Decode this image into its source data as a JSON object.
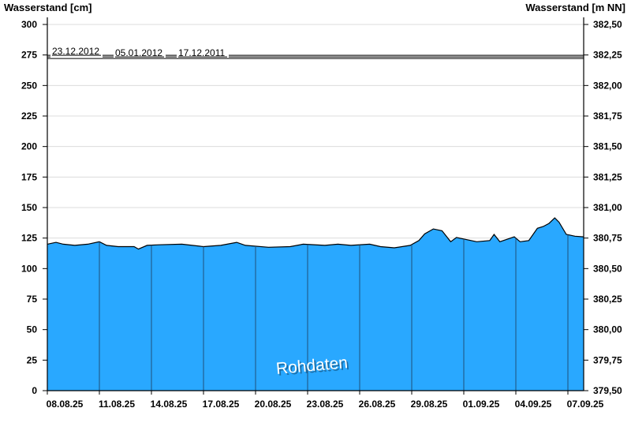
{
  "chart_data": {
    "type": "area",
    "ylabel_left": "Wasserstand [cm]",
    "ylabel_right": "Wasserstand [m NN]",
    "watermark": "Rohdaten",
    "ylim": [
      0,
      300
    ],
    "ylim_right": [
      379.5,
      382.5
    ],
    "grid": true,
    "fill_color": "#29a8ff",
    "yticks_left": [
      "0",
      "25",
      "50",
      "75",
      "100",
      "125",
      "150",
      "175",
      "200",
      "225",
      "250",
      "275",
      "300"
    ],
    "yticks_right": [
      "379,50",
      "379,75",
      "380,00",
      "380,25",
      "380,50",
      "380,75",
      "381,00",
      "381,25",
      "381,50",
      "381,75",
      "382,00",
      "382,25",
      "382,50"
    ],
    "xticks": [
      "08.08.25",
      "11.08.25",
      "14.08.25",
      "17.08.25",
      "20.08.25",
      "23.08.25",
      "26.08.25",
      "29.08.25",
      "01.09.25",
      "04.09.25",
      "07.09.25"
    ],
    "xlim": [
      "2025-08-08T00:00",
      "2025-09-07T22:00"
    ],
    "reference_lines": [
      {
        "label": "23.12.2012",
        "value": 274.7
      },
      {
        "label": "05.01.2012",
        "value": 273.4
      },
      {
        "label": "17.12.2011",
        "value": 272.1
      }
    ],
    "series": [
      {
        "points": [
          [
            "2025-08-08T00:00",
            120
          ],
          [
            "2025-08-08T12:00",
            121.5
          ],
          [
            "2025-08-08T22:00",
            120
          ],
          [
            "2025-08-09T14:00",
            119
          ],
          [
            "2025-08-10T08:00",
            120
          ],
          [
            "2025-08-11T00:00",
            122
          ],
          [
            "2025-08-11T10:00",
            119
          ],
          [
            "2025-08-12T02:00",
            118
          ],
          [
            "2025-08-13T00:00",
            118
          ],
          [
            "2025-08-13T06:00",
            116
          ],
          [
            "2025-08-13T18:00",
            119
          ],
          [
            "2025-08-14T10:00",
            119.5
          ],
          [
            "2025-08-15T18:00",
            120
          ],
          [
            "2025-08-17T00:00",
            118
          ],
          [
            "2025-08-18T00:00",
            119
          ],
          [
            "2025-08-18T22:00",
            121.5
          ],
          [
            "2025-08-19T10:00",
            119
          ],
          [
            "2025-08-20T18:00",
            117.5
          ],
          [
            "2025-08-22T00:00",
            118
          ],
          [
            "2025-08-22T18:00",
            120
          ],
          [
            "2025-08-24T00:00",
            119
          ],
          [
            "2025-08-24T18:00",
            120
          ],
          [
            "2025-08-25T12:00",
            119
          ],
          [
            "2025-08-26T14:00",
            120
          ],
          [
            "2025-08-27T05:00",
            118
          ],
          [
            "2025-08-28T00:00",
            117
          ],
          [
            "2025-08-28T22:00",
            119
          ],
          [
            "2025-08-29T10:00",
            123
          ],
          [
            "2025-08-29T18:00",
            128.5
          ],
          [
            "2025-08-30T06:00",
            132.5
          ],
          [
            "2025-08-30T18:00",
            131
          ],
          [
            "2025-08-31T06:00",
            122
          ],
          [
            "2025-08-31T14:00",
            125.5
          ],
          [
            "2025-09-01T18:00",
            122
          ],
          [
            "2025-09-02T12:00",
            123
          ],
          [
            "2025-09-02T18:00",
            128
          ],
          [
            "2025-09-03T02:00",
            122
          ],
          [
            "2025-09-03T22:00",
            126
          ],
          [
            "2025-09-04T06:00",
            122
          ],
          [
            "2025-09-04T18:00",
            123
          ],
          [
            "2025-09-05T06:00",
            133
          ],
          [
            "2025-09-05T14:00",
            134.5
          ],
          [
            "2025-09-05T22:00",
            137
          ],
          [
            "2025-09-06T06:00",
            141.5
          ],
          [
            "2025-09-06T12:00",
            138
          ],
          [
            "2025-09-06T22:00",
            128
          ],
          [
            "2025-09-07T10:00",
            126.5
          ],
          [
            "2025-09-07T22:00",
            126
          ]
        ]
      }
    ]
  }
}
